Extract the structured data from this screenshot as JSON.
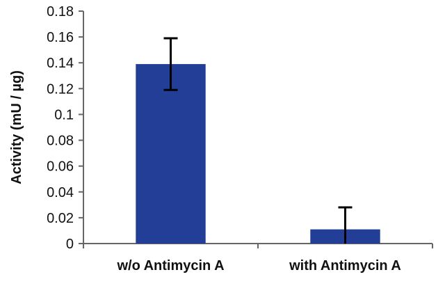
{
  "chart_data": {
    "type": "bar",
    "categories": [
      "w/o Antimycin A",
      "with Antimycin A"
    ],
    "values": [
      0.139,
      0.011
    ],
    "error_bars": [
      0.02,
      0.017
    ],
    "error_bar_direction": "upper-and-lower",
    "title": "",
    "xlabel": "",
    "ylabel": "Activity (mU / µg)",
    "ylim": [
      0,
      0.18
    ],
    "yticks": [
      "0",
      "0.02",
      "0.04",
      "0.06",
      "0.08",
      "0.1",
      "0.12",
      "0.14",
      "0.16",
      "0.18"
    ],
    "grid": false,
    "legend": "none",
    "colors": {
      "bar": "#223e96",
      "axis": "#666666",
      "error_bar": "#000000"
    }
  }
}
